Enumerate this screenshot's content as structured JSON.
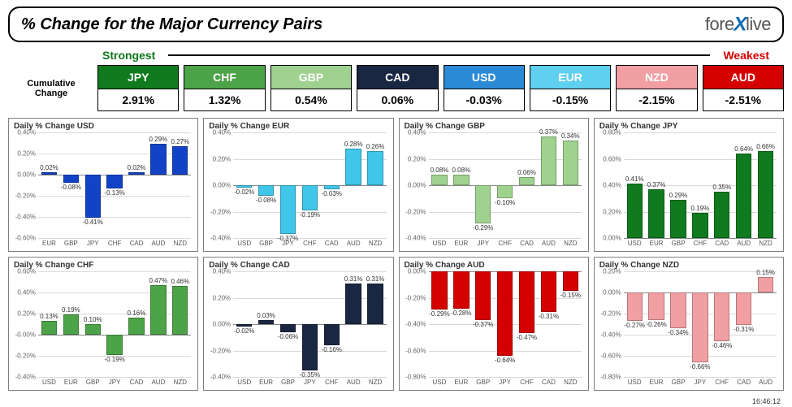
{
  "title": "% Change for the Major Currency Pairs",
  "logo": {
    "prefix": "fore",
    "x": "X",
    "suffix": "live"
  },
  "strength": {
    "strongest": "Strongest",
    "weakest": "Weakest"
  },
  "cumulative_label_1": "Cumulative",
  "cumulative_label_2": "Change",
  "timestamp": "16:46:12",
  "header": [
    {
      "code": "JPY",
      "value": "2.91%",
      "bg": "#0f7a1e"
    },
    {
      "code": "CHF",
      "value": "1.32%",
      "bg": "#4da348"
    },
    {
      "code": "GBP",
      "value": "0.54%",
      "bg": "#9fd18f"
    },
    {
      "code": "CAD",
      "value": "0.06%",
      "bg": "#1a2742"
    },
    {
      "code": "USD",
      "value": "-0.03%",
      "bg": "#2a8ad6"
    },
    {
      "code": "EUR",
      "value": "-0.15%",
      "bg": "#5fd0ef"
    },
    {
      "code": "NZD",
      "value": "-2.15%",
      "bg": "#f19fa3"
    },
    {
      "code": "AUD",
      "value": "-2.51%",
      "bg": "#d40000"
    }
  ],
  "panels": [
    {
      "title": "Daily % Change USD",
      "bar_color": "#1243c7",
      "ymin": -0.6,
      "ymax": 0.4,
      "ystep": 0.2,
      "categories": [
        "EUR",
        "GBP",
        "JPY",
        "CHF",
        "CAD",
        "AUD",
        "NZD"
      ],
      "values": [
        0.02,
        -0.08,
        -0.41,
        -0.13,
        0.02,
        0.29,
        0.27
      ],
      "labels": [
        "0.02%",
        "-0.08%",
        "-0.41%",
        "-0.13%",
        "0.02%",
        "0.29%",
        "0.27%"
      ]
    },
    {
      "title": "Daily % Change EUR",
      "bar_color": "#3fc6e8",
      "ymin": -0.4,
      "ymax": 0.4,
      "ystep": 0.2,
      "categories": [
        "USD",
        "GBP",
        "JPY",
        "CHF",
        "CAD",
        "AUD",
        "NZD"
      ],
      "values": [
        -0.02,
        -0.08,
        -0.37,
        -0.19,
        -0.03,
        0.28,
        0.26
      ],
      "labels": [
        "-0.02%",
        "-0.08%",
        "-0.37%",
        "-0.19%",
        "-0.03%",
        "0.28%",
        "0.26%"
      ]
    },
    {
      "title": "Daily % Change GBP",
      "bar_color": "#9fd18f",
      "ymin": -0.4,
      "ymax": 0.4,
      "ystep": 0.2,
      "categories": [
        "USD",
        "EUR",
        "JPY",
        "CHF",
        "CAD",
        "AUD",
        "NZD"
      ],
      "values": [
        0.08,
        0.08,
        -0.29,
        -0.1,
        0.06,
        0.37,
        0.34
      ],
      "labels": [
        "0.08%",
        "0.08%",
        "-0.29%",
        "-0.10%",
        "0.06%",
        "0.37%",
        "0.34%"
      ]
    },
    {
      "title": "Daily % Change JPY",
      "bar_color": "#0f7a1e",
      "ymin": 0.0,
      "ymax": 0.8,
      "ystep": 0.2,
      "categories": [
        "USD",
        "EUR",
        "GBP",
        "CHF",
        "CAD",
        "AUD",
        "NZD"
      ],
      "values": [
        0.41,
        0.37,
        0.29,
        0.19,
        0.35,
        0.64,
        0.66
      ],
      "labels": [
        "0.41%",
        "0.37%",
        "0.29%",
        "0.19%",
        "0.35%",
        "0.64%",
        "0.66%"
      ]
    },
    {
      "title": "Daily % Change CHF",
      "bar_color": "#4da348",
      "ymin": -0.4,
      "ymax": 0.6,
      "ystep": 0.2,
      "categories": [
        "USD",
        "EUR",
        "GBP",
        "JPY",
        "CAD",
        "AUD",
        "NZD"
      ],
      "values": [
        0.13,
        0.19,
        0.1,
        -0.19,
        0.16,
        0.47,
        0.46
      ],
      "labels": [
        "0.13%",
        "0.19%",
        "0.10%",
        "-0.19%",
        "0.16%",
        "0.47%",
        "0.46%"
      ]
    },
    {
      "title": "Daily % Change CAD",
      "bar_color": "#1a2742",
      "ymin": -0.4,
      "ymax": 0.4,
      "ystep": 0.2,
      "categories": [
        "USD",
        "EUR",
        "GBP",
        "JPY",
        "CHF",
        "AUD",
        "NZD"
      ],
      "values": [
        -0.02,
        0.03,
        -0.06,
        -0.35,
        -0.16,
        0.31,
        0.31
      ],
      "labels": [
        "-0.02%",
        "0.03%",
        "-0.06%",
        "-0.35%",
        "-0.16%",
        "0.31%",
        "0.31%"
      ]
    },
    {
      "title": "Daily % Change AUD",
      "bar_color": "#d40000",
      "ymin": -0.8,
      "ymax": 0.0,
      "ystep": 0.2,
      "categories": [
        "USD",
        "EUR",
        "GBP",
        "JPY",
        "CHF",
        "CAD",
        "NZD"
      ],
      "values": [
        -0.29,
        -0.28,
        -0.37,
        -0.64,
        -0.47,
        -0.31,
        -0.15
      ],
      "labels": [
        "-0.29%",
        "-0.28%",
        "-0.37%",
        "-0.64%",
        "-0.47%",
        "-0.31%",
        "-0.15%"
      ]
    },
    {
      "title": "Daily % Change NZD",
      "bar_color": "#f19fa3",
      "ymin": -0.8,
      "ymax": 0.2,
      "ystep": 0.2,
      "categories": [
        "USD",
        "EUR",
        "GBP",
        "JPY",
        "CHF",
        "CAD",
        "AUD"
      ],
      "values": [
        -0.27,
        -0.26,
        -0.34,
        -0.66,
        -0.46,
        -0.31,
        0.15
      ],
      "labels": [
        "-0.27%",
        "-0.26%",
        "-0.34%",
        "-0.66%",
        "-0.46%",
        "-0.31%",
        "0.15%"
      ]
    }
  ]
}
